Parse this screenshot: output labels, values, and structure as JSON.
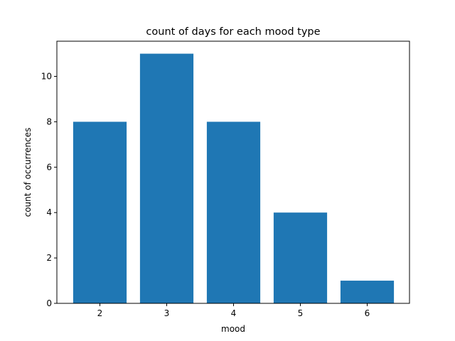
{
  "chart_data": {
    "type": "bar",
    "title": "count of days for each mood type",
    "xlabel": "mood",
    "ylabel": "count of occurrences",
    "categories": [
      "2",
      "3",
      "4",
      "5",
      "6"
    ],
    "values": [
      8,
      11,
      8,
      4,
      1
    ],
    "ylim": [
      0,
      11.55
    ],
    "yticks": [
      0,
      2,
      4,
      6,
      8,
      10
    ],
    "grid": false,
    "legend": "none",
    "bar_color": "#1f77b4"
  }
}
